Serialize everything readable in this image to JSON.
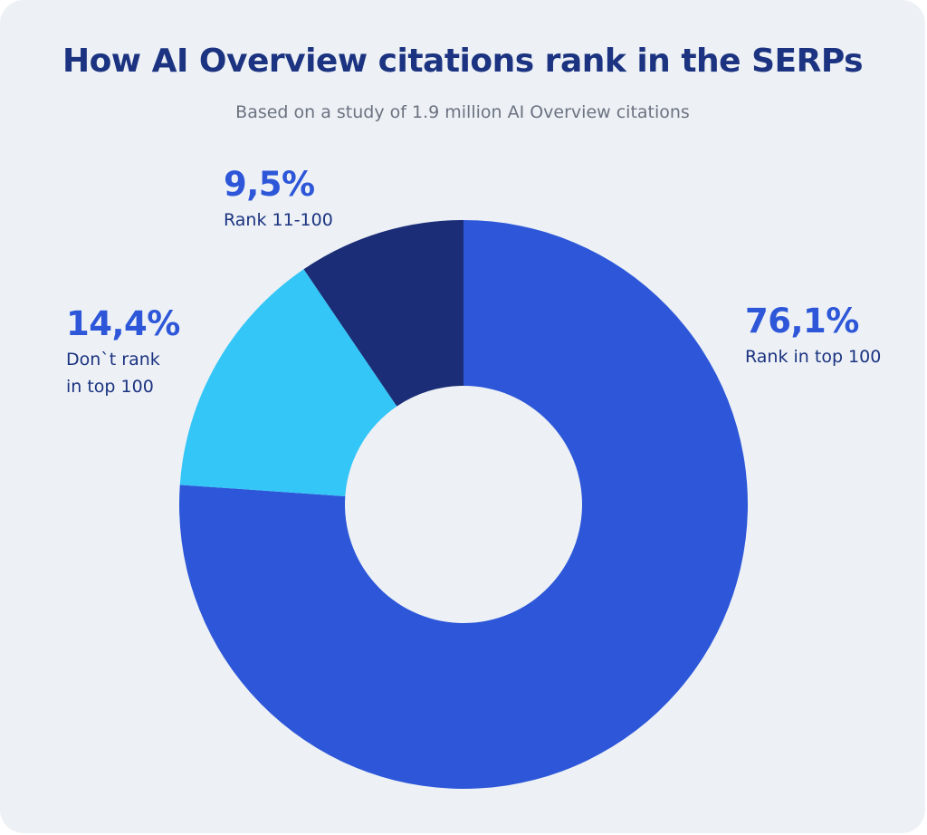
{
  "chart_data": {
    "type": "pie",
    "donut": true,
    "title": "How AI Overview citations rank in the SERPs",
    "subtitle": "Based on a study of 1.9 million AI Overview citations",
    "slices": [
      {
        "value_label": "76,1%",
        "label_lines": [
          "Rank in top 100"
        ],
        "value": 76.1,
        "color": "#2d57d8"
      },
      {
        "value_label": "14,4%",
        "label_lines": [
          "Don`t rank",
          "in top 100"
        ],
        "value": 14.4,
        "color": "#34c6f7"
      },
      {
        "value_label": "9,5%",
        "label_lines": [
          "Rank 11-100"
        ],
        "value": 9.5,
        "color": "#1a2d76"
      }
    ],
    "legend": "none",
    "text_colors": {
      "title": "#1b3380",
      "value": "#2d57d8",
      "label": "#1b3380"
    }
  }
}
